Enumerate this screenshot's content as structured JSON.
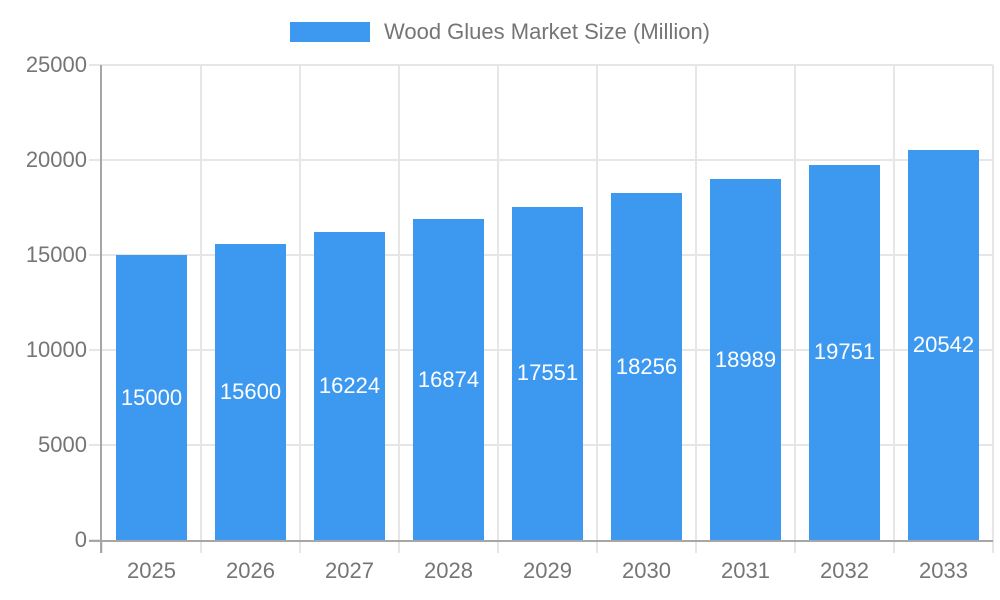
{
  "legend": {
    "label": "Wood Glues Market Size (Million)"
  },
  "colors": {
    "background": "#ffffff",
    "bar": "#3d99f0",
    "grid": "#e6e6e6",
    "axis": "#a6a6a6",
    "text": "#757575",
    "value_label": "#ffffff"
  },
  "chart_data": {
    "type": "bar",
    "title": "Wood Glues Market Size (Million)",
    "categories": [
      "2025",
      "2026",
      "2027",
      "2028",
      "2029",
      "2030",
      "2031",
      "2032",
      "2033"
    ],
    "values": [
      15000,
      15600,
      16224,
      16874,
      17551,
      18256,
      18989,
      19751,
      20542
    ],
    "value_labels": [
      "15000",
      "15600",
      "16224",
      "16874",
      "17551",
      "18256",
      "18989",
      "19751",
      "20542"
    ],
    "xlabel": "",
    "ylabel": "",
    "ylim": [
      0,
      25000
    ],
    "yticks": [
      0,
      5000,
      10000,
      15000,
      20000,
      25000
    ],
    "ytick_labels": [
      "0",
      "5000",
      "10000",
      "15000",
      "20000",
      "25000"
    ],
    "grid": true,
    "legend_position": "top-center",
    "bar_label_position": "center-of-bar"
  }
}
